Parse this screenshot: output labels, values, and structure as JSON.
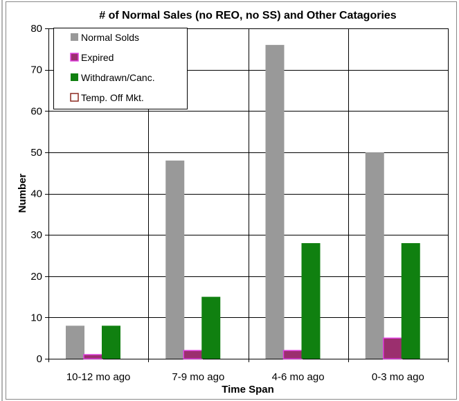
{
  "colors": {
    "normal_solds": "#999999",
    "expired": "#9b2f6e",
    "expired_border": "#e040e0",
    "withdrawn": "#108010",
    "temp_off": "#ffffff",
    "temp_off_border": "#8b2a20",
    "grid": "#000000"
  },
  "chart_data": {
    "type": "bar",
    "title": "# of Normal Sales (no REO, no SS)  and Other Catagories",
    "xlabel": "Time Span",
    "ylabel": "Number",
    "ylim": [
      0,
      80
    ],
    "yticks": [
      0,
      10,
      20,
      30,
      40,
      50,
      60,
      70,
      80
    ],
    "categories": [
      "10-12 mo ago",
      "7-9 mo ago",
      "4-6 mo ago",
      "0-3 mo ago"
    ],
    "series": [
      {
        "name": "Normal Solds",
        "values": [
          8,
          48,
          76,
          50
        ]
      },
      {
        "name": "Expired",
        "values": [
          1,
          2,
          2,
          5
        ]
      },
      {
        "name": "Withdrawn/Canc.",
        "values": [
          8,
          15,
          28,
          28
        ]
      },
      {
        "name": "Temp. Off Mkt.",
        "values": [
          0,
          0,
          0,
          0
        ]
      }
    ],
    "grid": true,
    "legend_position": "top-left"
  }
}
